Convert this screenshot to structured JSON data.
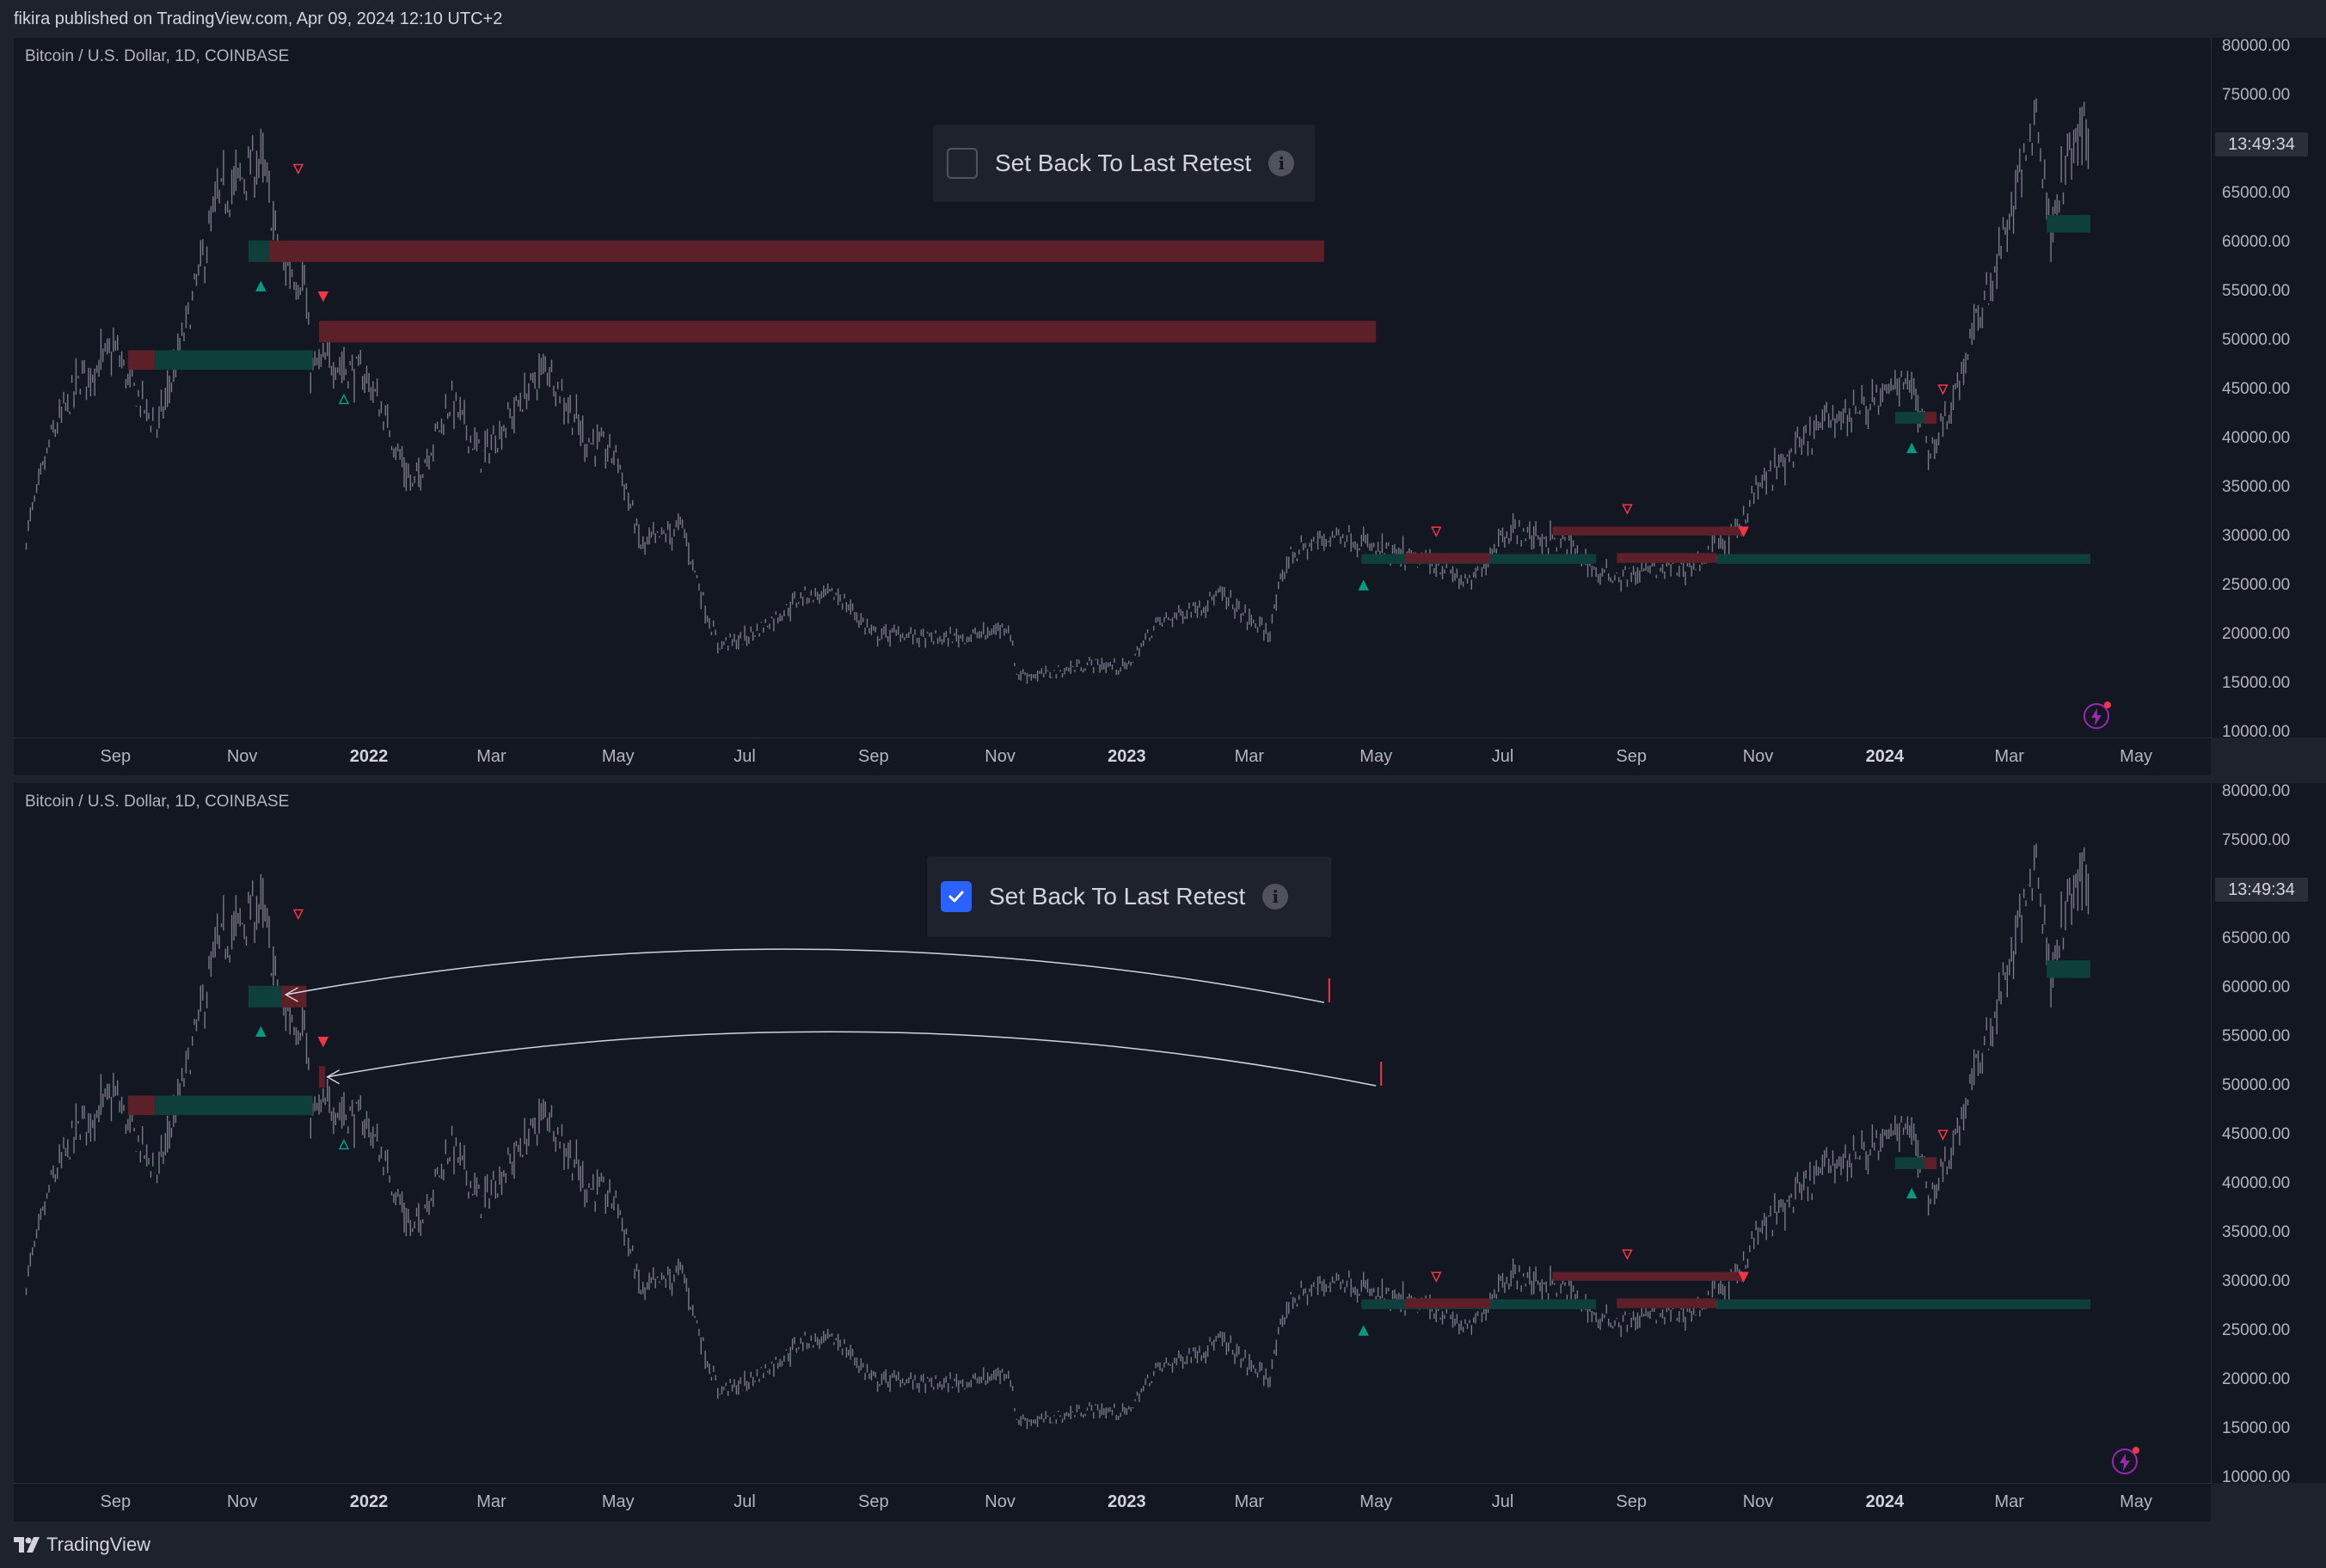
{
  "header": {
    "publish_info": "fikira published on TradingView.com, Apr 09, 2024 12:10 UTC+2"
  },
  "footer": {
    "brand": "TradingView"
  },
  "colors": {
    "background": "#131722",
    "price_line": "#787b86",
    "bearish": "#f23645",
    "bullish": "#089981",
    "bearish_zone": "#5d2029",
    "bullish_zone": "#0f3f3b",
    "checkbox_on": "#2962ff"
  },
  "panes": [
    {
      "symbol_title": "Bitcoin / U.S. Dollar, 1D, COINBASE",
      "setting_label": "Set Back To Last Retest",
      "setting_checked": false,
      "countdown": "13:49:34"
    },
    {
      "symbol_title": "Bitcoin / U.S. Dollar, 1D, COINBASE",
      "setting_label": "Set Back To Last Retest",
      "setting_checked": true,
      "countdown": "13:49:34"
    }
  ],
  "chart_data": {
    "type": "line",
    "title": "Bitcoin / U.S. Dollar, 1D, COINBASE",
    "x_ticks": [
      "Sep",
      "Nov",
      "2022",
      "Mar",
      "May",
      "Jul",
      "Sep",
      "Nov",
      "2023",
      "Mar",
      "May",
      "Jul",
      "Sep",
      "Nov",
      "2024",
      "Mar",
      "May"
    ],
    "x_ticks_bold": [
      "2022",
      "2023",
      "2024"
    ],
    "y_ticks": [
      "80000.00",
      "75000.00",
      "70000.00",
      "65000.00",
      "60000.00",
      "55000.00",
      "50000.00",
      "45000.00",
      "40000.00",
      "35000.00",
      "30000.00",
      "25000.00",
      "20000.00",
      "15000.00",
      "10000.00"
    ],
    "ylim": [
      10000,
      80000
    ],
    "xlim": [
      "2021-07-14",
      "2024-06-06"
    ],
    "grid": false,
    "series": [
      {
        "x": [
          "2021-07-20",
          "2021-08-01",
          "2021-08-15",
          "2021-09-01",
          "2021-09-07",
          "2021-09-21",
          "2021-10-01",
          "2021-10-20",
          "2021-11-10",
          "2021-11-20",
          "2021-12-01",
          "2021-12-04",
          "2021-12-15",
          "2022-01-01",
          "2022-01-22",
          "2022-02-10",
          "2022-02-24",
          "2022-03-28",
          "2022-04-15",
          "2022-05-01",
          "2022-05-12",
          "2022-06-01",
          "2022-06-13",
          "2022-06-18",
          "2022-07-01",
          "2022-07-30",
          "2022-08-15",
          "2022-09-01",
          "2022-09-15",
          "2022-10-01",
          "2022-10-25",
          "2022-11-05",
          "2022-11-09",
          "2022-11-21",
          "2022-12-15",
          "2023-01-01",
          "2023-01-15",
          "2023-02-15",
          "2023-03-10",
          "2023-03-20",
          "2023-04-14",
          "2023-05-01",
          "2023-06-01",
          "2023-06-15",
          "2023-07-01",
          "2023-07-15",
          "2023-08-01",
          "2023-08-17",
          "2023-09-01",
          "2023-09-15",
          "2023-10-01",
          "2023-10-20",
          "2023-11-01",
          "2023-12-05",
          "2024-01-01",
          "2024-01-11",
          "2024-01-23",
          "2024-02-01",
          "2024-02-15",
          "2024-03-01",
          "2024-03-14",
          "2024-03-20",
          "2024-04-01",
          "2024-04-08"
        ],
        "y": [
          30000,
          40000,
          46000,
          49000,
          46000,
          41000,
          48000,
          64000,
          68500,
          58000,
          56000,
          47000,
          48000,
          46000,
          35000,
          44000,
          38000,
          47500,
          40000,
          38000,
          29000,
          31000,
          22000,
          19000,
          19500,
          24000,
          24000,
          20000,
          20000,
          19500,
          20000,
          21000,
          16000,
          15800,
          17000,
          16600,
          21000,
          24000,
          20000,
          28000,
          30500,
          28500,
          27000,
          25000,
          30500,
          30200,
          29200,
          26000,
          26000,
          26800,
          27000,
          30000,
          35000,
          42000,
          44000,
          47000,
          39000,
          43000,
          52000,
          62000,
          73500,
          62000,
          70000,
          71500
        ],
        "style": "daily candles rendered as thin grey bars"
      }
    ],
    "annotations": {
      "pane1": {
        "zones": [
          {
            "kind": "bearish",
            "from": "2021-11-14",
            "to": "2023-04-06",
            "low": 58000,
            "high": 60200
          },
          {
            "kind": "bullish",
            "from": "2021-11-04",
            "to": "2021-11-14",
            "low": 58000,
            "high": 60200
          },
          {
            "kind": "bearish",
            "from": "2021-12-08",
            "to": "2023-05-01",
            "low": 49800,
            "high": 52000
          },
          {
            "kind": "bearish",
            "from": "2021-09-07",
            "to": "2021-09-20",
            "low": 47000,
            "high": 49000
          },
          {
            "kind": "bullish",
            "from": "2021-09-20",
            "to": "2021-12-05",
            "low": 47000,
            "high": 49000
          },
          {
            "kind": "bullish",
            "from": "2023-04-24",
            "to": "2023-08-15",
            "low": 27200,
            "high": 28200
          },
          {
            "kind": "bearish",
            "from": "2023-05-15",
            "to": "2023-06-25",
            "low": 27300,
            "high": 28300
          },
          {
            "kind": "bearish",
            "from": "2023-07-25",
            "to": "2023-10-25",
            "low": 30100,
            "high": 31000
          },
          {
            "kind": "bearish",
            "from": "2023-08-25",
            "to": "2023-10-12",
            "low": 27300,
            "high": 28300
          },
          {
            "kind": "bullish",
            "from": "2023-10-12",
            "to": "2024-04-09",
            "low": 27200,
            "high": 28200
          },
          {
            "kind": "bullish",
            "from": "2024-01-06",
            "to": "2024-01-25",
            "low": 41500,
            "high": 42700
          },
          {
            "kind": "bearish",
            "from": "2024-01-20",
            "to": "2024-01-26",
            "low": 41500,
            "high": 42700
          },
          {
            "kind": "bullish",
            "from": "2024-03-19",
            "to": "2024-04-09",
            "low": 61000,
            "high": 62800
          }
        ],
        "markers": [
          {
            "kind": "down-hollow",
            "date": "2021-11-28",
            "price": 67500
          },
          {
            "kind": "down-filled",
            "date": "2021-12-10",
            "price": 54500
          },
          {
            "kind": "up-filled",
            "date": "2021-11-10",
            "price": 55500
          },
          {
            "kind": "up-hollow",
            "date": "2021-12-20",
            "price": 44000
          },
          {
            "kind": "up-filled",
            "date": "2023-04-25",
            "price": 25000
          },
          {
            "kind": "down-hollow",
            "date": "2023-05-30",
            "price": 30500
          },
          {
            "kind": "down-hollow",
            "date": "2023-08-30",
            "price": 32800
          },
          {
            "kind": "down-filled",
            "date": "2023-10-25",
            "price": 30500
          },
          {
            "kind": "down-hollow",
            "date": "2024-01-29",
            "price": 45000
          },
          {
            "kind": "up-filled",
            "date": "2024-01-14",
            "price": 39000
          }
        ]
      },
      "pane2": {
        "zones": [
          {
            "kind": "bullish",
            "from": "2021-11-04",
            "to": "2021-11-20",
            "low": 58000,
            "high": 60200
          },
          {
            "kind": "bearish",
            "from": "2021-11-20",
            "to": "2021-12-02",
            "low": 58000,
            "high": 60200
          },
          {
            "kind": "bearish",
            "from": "2021-09-07",
            "to": "2021-09-20",
            "low": 47000,
            "high": 49000
          },
          {
            "kind": "bullish",
            "from": "2021-09-20",
            "to": "2021-12-05",
            "low": 47000,
            "high": 49000
          },
          {
            "kind": "bearish",
            "from": "2021-12-08",
            "to": "2021-12-11",
            "low": 49800,
            "high": 52000
          },
          {
            "kind": "bullish",
            "from": "2023-04-24",
            "to": "2023-08-15",
            "low": 27200,
            "high": 28200
          },
          {
            "kind": "bearish",
            "from": "2023-05-15",
            "to": "2023-06-25",
            "low": 27300,
            "high": 28300
          },
          {
            "kind": "bearish",
            "from": "2023-07-25",
            "to": "2023-10-25",
            "low": 30100,
            "high": 31000
          },
          {
            "kind": "bearish",
            "from": "2023-08-25",
            "to": "2023-10-12",
            "low": 27300,
            "high": 28300
          },
          {
            "kind": "bullish",
            "from": "2023-10-12",
            "to": "2024-04-09",
            "low": 27200,
            "high": 28200
          },
          {
            "kind": "bullish",
            "from": "2024-01-06",
            "to": "2024-01-25",
            "low": 41500,
            "high": 42700
          },
          {
            "kind": "bearish",
            "from": "2024-01-20",
            "to": "2024-01-26",
            "low": 41500,
            "high": 42700
          },
          {
            "kind": "bullish",
            "from": "2024-03-19",
            "to": "2024-04-09",
            "low": 61000,
            "high": 62800
          }
        ],
        "markers": [
          {
            "kind": "down-hollow",
            "date": "2021-11-28",
            "price": 67500
          },
          {
            "kind": "down-filled",
            "date": "2021-12-10",
            "price": 54500
          },
          {
            "kind": "up-filled",
            "date": "2021-11-10",
            "price": 55500
          },
          {
            "kind": "up-hollow",
            "date": "2021-12-20",
            "price": 44000
          },
          {
            "kind": "up-filled",
            "date": "2023-04-25",
            "price": 25000
          },
          {
            "kind": "down-hollow",
            "date": "2023-05-30",
            "price": 30500
          },
          {
            "kind": "down-hollow",
            "date": "2023-08-30",
            "price": 32800
          },
          {
            "kind": "down-filled",
            "date": "2023-10-25",
            "price": 30500
          },
          {
            "kind": "down-hollow",
            "date": "2024-01-29",
            "price": 45000
          },
          {
            "kind": "up-filled",
            "date": "2024-01-14",
            "price": 39000
          }
        ],
        "arrows": [
          {
            "from_date": "2023-04-06",
            "from_price": 58500,
            "to_date": "2021-11-22",
            "to_price": 59300
          },
          {
            "from_date": "2023-05-01",
            "from_price": 50000,
            "to_date": "2021-12-12",
            "to_price": 50900
          }
        ]
      }
    }
  }
}
